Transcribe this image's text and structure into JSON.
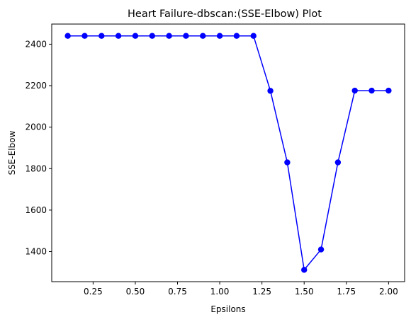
{
  "chart_data": {
    "type": "line",
    "title": "Heart Failure-dbscan:(SSE-Elbow) Plot",
    "xlabel": "Epsilons",
    "ylabel": "SSE-Elbow",
    "x": [
      0.1,
      0.2,
      0.3,
      0.4,
      0.5,
      0.6,
      0.7,
      0.8,
      0.9,
      1.0,
      1.1,
      1.2,
      1.3,
      1.4,
      1.5,
      1.6,
      1.7,
      1.8,
      1.9,
      2.0
    ],
    "series": [
      {
        "values": [
          2440,
          2440,
          2440,
          2440,
          2440,
          2440,
          2440,
          2440,
          2440,
          2440,
          2440,
          2440,
          2175,
          1830,
          1312,
          1410,
          1830,
          2176,
          2176,
          2176
        ],
        "color": "#0000ff",
        "marker": "circle"
      }
    ],
    "xlim": [
      0.005,
      2.095
    ],
    "ylim": [
      1255,
      2497
    ],
    "xticks": [
      0.25,
      0.5,
      0.75,
      1.0,
      1.25,
      1.5,
      1.75,
      2.0
    ],
    "xtick_labels": [
      "0.25",
      "0.50",
      "0.75",
      "1.00",
      "1.25",
      "1.50",
      "1.75",
      "2.00"
    ],
    "yticks": [
      1400,
      1600,
      1800,
      2000,
      2200,
      2400
    ],
    "ytick_labels": [
      "1400",
      "1600",
      "1800",
      "2000",
      "2200",
      "2400"
    ],
    "grid": false,
    "legend": "none"
  }
}
